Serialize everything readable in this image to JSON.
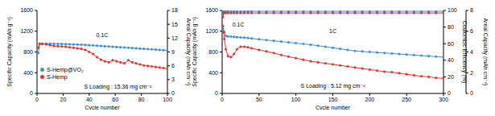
{
  "chart_data": [
    {
      "type": "line",
      "x_label": "Cycle number",
      "y_label": "Specific Capacity (mAh g⁻¹)",
      "y2_label": "Areal Capacity (mAh cm⁻²)",
      "xlim": [
        0,
        100
      ],
      "xticks": [
        0,
        20,
        40,
        60,
        80,
        100
      ],
      "ylim": [
        0,
        1600
      ],
      "yticks": [
        0,
        400,
        800,
        1200,
        1600
      ],
      "y2lim": [
        0,
        18
      ],
      "y2ticks": [
        0,
        3,
        6,
        9,
        12,
        15,
        18
      ],
      "legend": "lower left",
      "annotations": [
        {
          "text": "0.1C",
          "x": 50,
          "y": 1130
        },
        {
          "text": "S Loading : 15.36 mg cm⁻²",
          "x": 62,
          "y": 130
        }
      ],
      "x": [
        1,
        2,
        4,
        7,
        10,
        13,
        16,
        19,
        22,
        25,
        28,
        31,
        34,
        37,
        40,
        43,
        46,
        49,
        52,
        55,
        58,
        61,
        64,
        67,
        70,
        73,
        76,
        79,
        82,
        85,
        88,
        91,
        94,
        97,
        100
      ],
      "series": [
        {
          "name": "S-Hemp@VO₂",
          "color": "#3b8fd9",
          "marker": "circle",
          "values": [
            780,
            950,
            955,
            960,
            960,
            958,
            955,
            953,
            950,
            948,
            945,
            942,
            940,
            935,
            930,
            925,
            920,
            915,
            910,
            905,
            900,
            895,
            890,
            885,
            880,
            875,
            870,
            865,
            860,
            855,
            850,
            845,
            840,
            835,
            830
          ]
        },
        {
          "name": "S-Hemp",
          "color": "#e0352f",
          "marker": "circle",
          "values": [
            880,
            960,
            955,
            945,
            930,
            915,
            910,
            905,
            900,
            890,
            880,
            870,
            860,
            840,
            800,
            760,
            700,
            650,
            620,
            600,
            640,
            620,
            600,
            580,
            640,
            600,
            580,
            560,
            540,
            530,
            520,
            510,
            500,
            490,
            475
          ]
        }
      ]
    },
    {
      "type": "line",
      "x_label": "Cycle number",
      "y_label": "Specific Capacity (mAh g⁻¹)",
      "y2_label": "Coulombic Efficiency (%)",
      "y3_label": "Areal Capacity (mAh cm⁻²)",
      "xlim": [
        0,
        300
      ],
      "xticks": [
        0,
        50,
        100,
        150,
        200,
        250,
        300
      ],
      "ylim": [
        0,
        1600
      ],
      "yticks": [
        0,
        400,
        800,
        1200,
        1600
      ],
      "y2lim": [
        0,
        100
      ],
      "y2ticks": [
        0,
        20,
        40,
        60,
        80,
        100
      ],
      "y3lim": [
        0,
        8
      ],
      "y3ticks": [
        0,
        2,
        4,
        6,
        8
      ],
      "annotations": [
        {
          "text": "0.1C",
          "x": 22,
          "y": 1330
        },
        {
          "text": "1C",
          "x": 150,
          "y": 1200
        },
        {
          "text": "S Loading : 5.12 mg cm⁻²",
          "x": 150,
          "y": 140
        }
      ],
      "x": [
        1,
        2,
        3,
        5,
        8,
        12,
        16,
        20,
        25,
        30,
        35,
        40,
        50,
        60,
        70,
        80,
        90,
        100,
        110,
        120,
        130,
        140,
        150,
        160,
        170,
        180,
        190,
        200,
        210,
        220,
        230,
        240,
        250,
        260,
        270,
        280,
        290,
        300
      ],
      "series": [
        {
          "color": "#3b8fd9",
          "marker": "circle",
          "values": [
            1250,
            1200,
            1180,
            1110,
            1100,
            1095,
            1090,
            1085,
            1080,
            1075,
            1070,
            1060,
            1045,
            1030,
            1015,
            1000,
            985,
            970,
            955,
            940,
            920,
            900,
            880,
            860,
            840,
            820,
            810,
            800,
            790,
            780,
            770,
            760,
            750,
            740,
            730,
            720,
            710,
            700
          ]
        },
        {
          "color": "#e0352f",
          "marker": "circle",
          "values": [
            1300,
            1180,
            1050,
            850,
            720,
            700,
            760,
            850,
            900,
            900,
            890,
            870,
            840,
            810,
            780,
            740,
            710,
            680,
            650,
            620,
            600,
            580,
            560,
            540,
            520,
            500,
            480,
            460,
            440,
            420,
            410,
            390,
            370,
            350,
            330,
            320,
            300,
            290
          ]
        },
        {
          "color": "#3b8fd9",
          "marker": "circle",
          "axis": "y2",
          "values": [
            95,
            99,
            99,
            99,
            99,
            99,
            99,
            99,
            99,
            99,
            99,
            99,
            99,
            99,
            99,
            99,
            99,
            99,
            99,
            99,
            99,
            99,
            99,
            99,
            99,
            99,
            99,
            99,
            99,
            99,
            99,
            99,
            99,
            99,
            99,
            99,
            99,
            99
          ]
        },
        {
          "color": "#e0352f",
          "marker": "circle",
          "axis": "y2",
          "values": [
            92,
            97,
            97,
            97,
            97,
            97,
            97,
            97,
            97,
            97,
            97,
            97,
            97,
            97,
            97,
            97,
            97,
            97,
            97,
            97,
            97,
            97,
            97,
            97,
            97,
            97,
            97,
            97,
            97,
            97,
            97,
            97,
            97,
            97,
            97,
            97,
            97,
            97
          ]
        }
      ]
    }
  ]
}
